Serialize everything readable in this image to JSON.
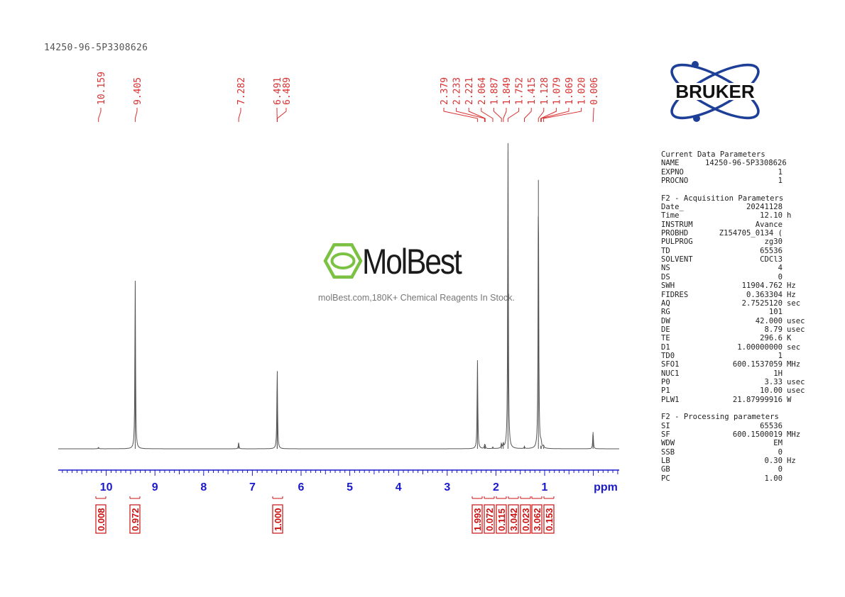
{
  "sample_id": "14250-96-5P3308626",
  "chart_data": {
    "type": "line",
    "x_unit": "ppm",
    "x_axis_reversed": true,
    "xlim": [
      11.0,
      -0.5
    ],
    "x_ticks": [
      10,
      9,
      8,
      7,
      6,
      5,
      4,
      3,
      2,
      1
    ],
    "peak_labels": [
      "10.159",
      "9.405",
      "7.282",
      "6.491",
      "6.489",
      "2.379",
      "2.233",
      "2.221",
      "2.064",
      "1.887",
      "1.849",
      "1.752",
      "1.415",
      "1.128",
      "1.079",
      "1.069",
      "1.020",
      "0.006"
    ],
    "peaks": [
      {
        "ppm": 10.159,
        "rel_height": 0.005
      },
      {
        "ppm": 9.405,
        "rel_height": 0.55
      },
      {
        "ppm": 7.282,
        "rel_height": 0.02
      },
      {
        "ppm": 6.491,
        "rel_height": 0.15
      },
      {
        "ppm": 6.489,
        "rel_height": 0.12
      },
      {
        "ppm": 2.379,
        "rel_height": 0.29
      },
      {
        "ppm": 2.233,
        "rel_height": 0.01
      },
      {
        "ppm": 2.221,
        "rel_height": 0.01
      },
      {
        "ppm": 2.064,
        "rel_height": 0.005
      },
      {
        "ppm": 1.887,
        "rel_height": 0.015
      },
      {
        "ppm": 1.849,
        "rel_height": 0.015
      },
      {
        "ppm": 1.752,
        "rel_height": 1.0
      },
      {
        "ppm": 1.415,
        "rel_height": 0.007
      },
      {
        "ppm": 1.128,
        "rel_height": 0.88
      },
      {
        "ppm": 1.079,
        "rel_height": 0.01
      },
      {
        "ppm": 1.069,
        "rel_height": 0.01
      },
      {
        "ppm": 1.02,
        "rel_height": 0.007
      },
      {
        "ppm": 0.006,
        "rel_height": 0.055
      }
    ],
    "integrals": [
      {
        "ppm": 10.159,
        "value": "0.008"
      },
      {
        "ppm": 9.405,
        "value": "0.972"
      },
      {
        "ppm": 6.49,
        "value": "1.000"
      },
      {
        "ppm": 2.379,
        "value": "1.993"
      },
      {
        "ppm": 2.23,
        "value": "0.072"
      },
      {
        "ppm": 2.07,
        "value": "0.115"
      },
      {
        "ppm": 1.752,
        "value": "3.042"
      },
      {
        "ppm": 1.415,
        "value": "0.023"
      },
      {
        "ppm": 1.128,
        "value": "3.062"
      },
      {
        "ppm": 1.02,
        "value": "0.153"
      }
    ]
  },
  "parameters": {
    "groups": [
      {
        "title": "Current Data Parameters",
        "rows": [
          {
            "k": "NAME",
            "v": "14250-96-5P3308626",
            "u": ""
          },
          {
            "k": "EXPNO",
            "v": "1",
            "u": ""
          },
          {
            "k": "PROCNO",
            "v": "1",
            "u": ""
          }
        ]
      },
      {
        "title": "F2 - Acquisition Parameters",
        "rows": [
          {
            "k": "Date_",
            "v": "20241128",
            "u": ""
          },
          {
            "k": "Time",
            "v": "12.10",
            "u": "h"
          },
          {
            "k": "INSTRUM",
            "v": "Avance",
            "u": ""
          },
          {
            "k": "PROBHD",
            "v": "Z154705_0134 (",
            "u": ""
          },
          {
            "k": "PULPROG",
            "v": "zg30",
            "u": ""
          },
          {
            "k": "TD",
            "v": "65536",
            "u": ""
          },
          {
            "k": "SOLVENT",
            "v": "CDCl3",
            "u": ""
          },
          {
            "k": "NS",
            "v": "4",
            "u": ""
          },
          {
            "k": "DS",
            "v": "0",
            "u": ""
          },
          {
            "k": "SWH",
            "v": "11904.762",
            "u": "Hz"
          },
          {
            "k": "FIDRES",
            "v": "0.363304",
            "u": "Hz"
          },
          {
            "k": "AQ",
            "v": "2.7525120",
            "u": "sec"
          },
          {
            "k": "RG",
            "v": "101",
            "u": ""
          },
          {
            "k": "DW",
            "v": "42.000",
            "u": "usec"
          },
          {
            "k": "DE",
            "v": "8.79",
            "u": "usec"
          },
          {
            "k": "TE",
            "v": "296.6",
            "u": "K"
          },
          {
            "k": "D1",
            "v": "1.00000000",
            "u": "sec"
          },
          {
            "k": "TD0",
            "v": "1",
            "u": ""
          },
          {
            "k": "SFO1",
            "v": "600.1537059",
            "u": "MHz"
          },
          {
            "k": "NUC1",
            "v": "1H",
            "u": ""
          },
          {
            "k": "P0",
            "v": "3.33",
            "u": "usec"
          },
          {
            "k": "P1",
            "v": "10.00",
            "u": "usec"
          },
          {
            "k": "PLW1",
            "v": "21.87999916",
            "u": "W"
          }
        ]
      },
      {
        "title": "F2 - Processing parameters",
        "rows": [
          {
            "k": "SI",
            "v": "65536",
            "u": ""
          },
          {
            "k": "SF",
            "v": "600.1500019",
            "u": "MHz"
          },
          {
            "k": "WDW",
            "v": "EM",
            "u": ""
          },
          {
            "k": "SSB",
            "v": "0",
            "u": ""
          },
          {
            "k": "LB",
            "v": "0.30",
            "u": "Hz"
          },
          {
            "k": "GB",
            "v": "0",
            "u": ""
          },
          {
            "k": "PC",
            "v": "1.00",
            "u": ""
          }
        ]
      }
    ]
  },
  "logos": {
    "bruker": "BRUKER",
    "molbest": "MolBest"
  },
  "watermark_tagline": "molBest.com,180K+ Chemical Reagents In Stock.",
  "colors": {
    "peak_label": "#d93030",
    "axis": "#1a1acc",
    "integral": "#cc1111",
    "spectrum": "#555555",
    "bruker_blue": "#1e3f98",
    "molbest_green": "#7cc242"
  }
}
